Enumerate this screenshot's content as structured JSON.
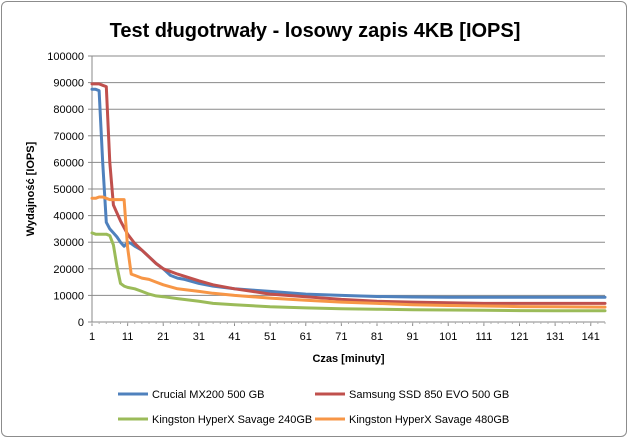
{
  "chart_data": {
    "type": "line",
    "title": "Test długotrwały - losowy zapis 4KB [IOPS]",
    "xlabel": "Czas [minuty]",
    "ylabel": "Wydajność [IOPS]",
    "xlim": [
      1,
      145
    ],
    "ylim": [
      0,
      100000
    ],
    "x_ticks": [
      "1",
      "11",
      "21",
      "31",
      "41",
      "51",
      "61",
      "71",
      "81",
      "91",
      "101",
      "111",
      "121",
      "131",
      "141"
    ],
    "y_ticks": [
      "0",
      "10000",
      "20000",
      "30000",
      "40000",
      "50000",
      "60000",
      "70000",
      "80000",
      "90000",
      "100000"
    ],
    "grid": "horizontal",
    "legend_position": "bottom",
    "series": [
      {
        "name": "Crucial MX200 500 GB",
        "color": "#4f81bd",
        "points": [
          [
            1,
            87500
          ],
          [
            2,
            87500
          ],
          [
            3,
            87000
          ],
          [
            4,
            60000
          ],
          [
            5,
            37500
          ],
          [
            6,
            35000
          ],
          [
            7,
            33500
          ],
          [
            8,
            32000
          ],
          [
            9,
            30000
          ],
          [
            10,
            28500
          ],
          [
            11,
            30000
          ],
          [
            12,
            29500
          ],
          [
            13,
            28500
          ],
          [
            15,
            27000
          ],
          [
            17,
            24500
          ],
          [
            19,
            22000
          ],
          [
            21,
            20000
          ],
          [
            23,
            17500
          ],
          [
            25,
            16500
          ],
          [
            27,
            16000
          ],
          [
            31,
            14500
          ],
          [
            35,
            13500
          ],
          [
            41,
            12500
          ],
          [
            46,
            12000
          ],
          [
            51,
            11500
          ],
          [
            56,
            11000
          ],
          [
            61,
            10500
          ],
          [
            71,
            10000
          ],
          [
            81,
            9600
          ],
          [
            91,
            9400
          ],
          [
            101,
            9300
          ],
          [
            111,
            9300
          ],
          [
            121,
            9300
          ],
          [
            131,
            9300
          ],
          [
            145,
            9300
          ]
        ]
      },
      {
        "name": "Samsung SSD 850 EVO 500 GB",
        "color": "#c0504d",
        "points": [
          [
            1,
            89500
          ],
          [
            2,
            89500
          ],
          [
            3,
            89500
          ],
          [
            4,
            89000
          ],
          [
            5,
            88500
          ],
          [
            6,
            60000
          ],
          [
            7,
            44000
          ],
          [
            8,
            41000
          ],
          [
            9,
            38000
          ],
          [
            11,
            33000
          ],
          [
            13,
            29500
          ],
          [
            15,
            27000
          ],
          [
            17,
            24500
          ],
          [
            19,
            22000
          ],
          [
            21,
            20000
          ],
          [
            25,
            18000
          ],
          [
            31,
            15500
          ],
          [
            35,
            14000
          ],
          [
            41,
            12500
          ],
          [
            46,
            11500
          ],
          [
            51,
            10500
          ],
          [
            61,
            9500
          ],
          [
            71,
            8500
          ],
          [
            81,
            7800
          ],
          [
            91,
            7500
          ],
          [
            101,
            7200
          ],
          [
            111,
            7000
          ],
          [
            121,
            7000
          ],
          [
            131,
            7000
          ],
          [
            145,
            7000
          ]
        ]
      },
      {
        "name": "Kingston HyperX Savage 240GB",
        "color": "#9bbb59",
        "points": [
          [
            1,
            33500
          ],
          [
            2,
            33000
          ],
          [
            3,
            33000
          ],
          [
            4,
            33000
          ],
          [
            5,
            33000
          ],
          [
            6,
            32500
          ],
          [
            7,
            29000
          ],
          [
            8,
            21000
          ],
          [
            9,
            14500
          ],
          [
            10,
            13500
          ],
          [
            11,
            13000
          ],
          [
            13,
            12500
          ],
          [
            15,
            11500
          ],
          [
            17,
            10500
          ],
          [
            19,
            9800
          ],
          [
            21,
            9500
          ],
          [
            25,
            8800
          ],
          [
            31,
            7800
          ],
          [
            35,
            7000
          ],
          [
            41,
            6500
          ],
          [
            51,
            5700
          ],
          [
            61,
            5300
          ],
          [
            71,
            5000
          ],
          [
            81,
            4800
          ],
          [
            91,
            4600
          ],
          [
            101,
            4500
          ],
          [
            111,
            4400
          ],
          [
            121,
            4300
          ],
          [
            131,
            4200
          ],
          [
            145,
            4200
          ]
        ]
      },
      {
        "name": "Kingston HyperX Savage 480GB",
        "color": "#f79646",
        "points": [
          [
            1,
            46500
          ],
          [
            2,
            46500
          ],
          [
            3,
            47000
          ],
          [
            4,
            47000
          ],
          [
            5,
            46500
          ],
          [
            6,
            46000
          ],
          [
            7,
            46000
          ],
          [
            8,
            46000
          ],
          [
            9,
            46000
          ],
          [
            10,
            46000
          ],
          [
            11,
            28000
          ],
          [
            12,
            18000
          ],
          [
            13,
            17500
          ],
          [
            15,
            16500
          ],
          [
            17,
            16000
          ],
          [
            19,
            15000
          ],
          [
            21,
            14000
          ],
          [
            25,
            12500
          ],
          [
            31,
            11500
          ],
          [
            35,
            10800
          ],
          [
            41,
            10000
          ],
          [
            51,
            9000
          ],
          [
            61,
            8200
          ],
          [
            71,
            7500
          ],
          [
            81,
            7000
          ],
          [
            91,
            6500
          ],
          [
            101,
            6200
          ],
          [
            111,
            6000
          ],
          [
            121,
            5800
          ],
          [
            131,
            5700
          ],
          [
            145,
            5600
          ]
        ]
      }
    ]
  }
}
